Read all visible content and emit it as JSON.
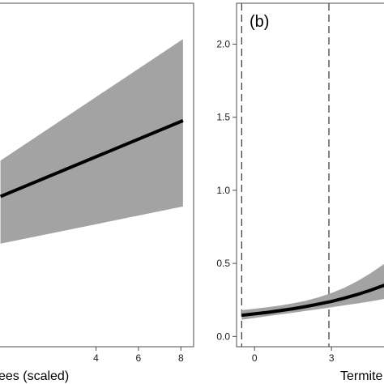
{
  "colors": {
    "band": "#a3a3a3",
    "line": "#000000",
    "frame": "#4d4d4d",
    "vline": "#333333"
  },
  "chart_data": [
    {
      "type": "line",
      "panel_label": "",
      "xlabel": "ees (scaled)",
      "ylabel": "",
      "grid": false,
      "xlim": [
        -0.6,
        8.6
      ],
      "ylim": [
        -1.0,
        1.4
      ],
      "x_ticks": [
        4,
        6,
        8
      ],
      "y_ticks": [],
      "series": [
        {
          "x": [
            -0.5,
            8.1
          ],
          "y": [
            0.05,
            0.58
          ],
          "lower": [
            -0.28,
            -0.02
          ],
          "upper": [
            0.3,
            1.15
          ]
        }
      ]
    },
    {
      "type": "line",
      "panel_label": "(b)",
      "xlabel": "Termite",
      "ylabel": "",
      "grid": false,
      "xlim": [
        -0.7,
        5.3
      ],
      "ylim": [
        -0.07,
        2.28
      ],
      "x_ticks": [
        0,
        3
      ],
      "y_ticks": [
        0.0,
        0.5,
        1.0,
        1.5,
        2.0
      ],
      "y_tick_labels": [
        "0.0",
        "0.5",
        "1.0",
        "1.5",
        "2.0"
      ],
      "vlines": [
        -0.5,
        2.9
      ],
      "series": [
        {
          "x": [
            -0.5,
            0.0,
            0.5,
            1.0,
            1.5,
            2.0,
            2.5,
            3.0,
            3.5,
            4.0,
            4.5,
            5.0,
            5.3
          ],
          "y": [
            0.145,
            0.155,
            0.165,
            0.177,
            0.19,
            0.205,
            0.222,
            0.24,
            0.262,
            0.287,
            0.315,
            0.347,
            0.37
          ],
          "lower": [
            0.115,
            0.127,
            0.139,
            0.151,
            0.163,
            0.175,
            0.187,
            0.2,
            0.213,
            0.226,
            0.24,
            0.255,
            0.264
          ],
          "upper": [
            0.18,
            0.19,
            0.2,
            0.212,
            0.227,
            0.245,
            0.268,
            0.297,
            0.333,
            0.378,
            0.43,
            0.49,
            0.525
          ]
        }
      ]
    }
  ]
}
